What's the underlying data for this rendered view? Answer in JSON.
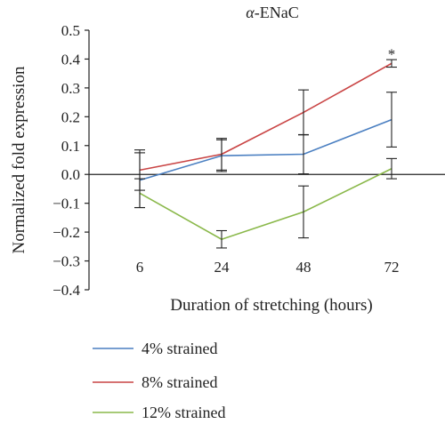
{
  "chart_data": {
    "type": "line",
    "title_prefix": "α",
    "title_suffix": "-ENaC",
    "xlabel": "Duration of stretching (hours)",
    "ylabel": "Normalized fold expression",
    "categories": [
      "6",
      "24",
      "48",
      "72"
    ],
    "ylim": [
      -0.4,
      0.5
    ],
    "yticks": [
      -0.4,
      -0.3,
      -0.2,
      -0.1,
      0.0,
      0.1,
      0.2,
      0.3,
      0.4,
      0.5
    ],
    "ytick_labels": [
      "−0.4",
      "−0.3",
      "−0.2",
      "−0.1",
      "0.0",
      "0.1",
      "0.2",
      "0.3",
      "0.4",
      "0.5"
    ],
    "grid": false,
    "legend_position": "bottom-left",
    "annotation": {
      "text": "*",
      "category_index": 3,
      "y": 0.425
    },
    "series": [
      {
        "name": "4% strained",
        "color": "#4a7fc1",
        "values": [
          -0.02,
          0.065,
          0.07,
          0.19
        ],
        "errors": [
          0.095,
          0.055,
          0.068,
          0.095
        ]
      },
      {
        "name": "8% strained",
        "color": "#c94444",
        "values": [
          0.015,
          0.07,
          0.215,
          0.385
        ],
        "errors": [
          0.07,
          0.055,
          0.078,
          0.013
        ]
      },
      {
        "name": "12% strained",
        "color": "#8ab84a",
        "values": [
          -0.065,
          -0.225,
          -0.13,
          0.02
        ],
        "errors": [
          0.05,
          0.03,
          0.09,
          0.035
        ]
      }
    ]
  }
}
